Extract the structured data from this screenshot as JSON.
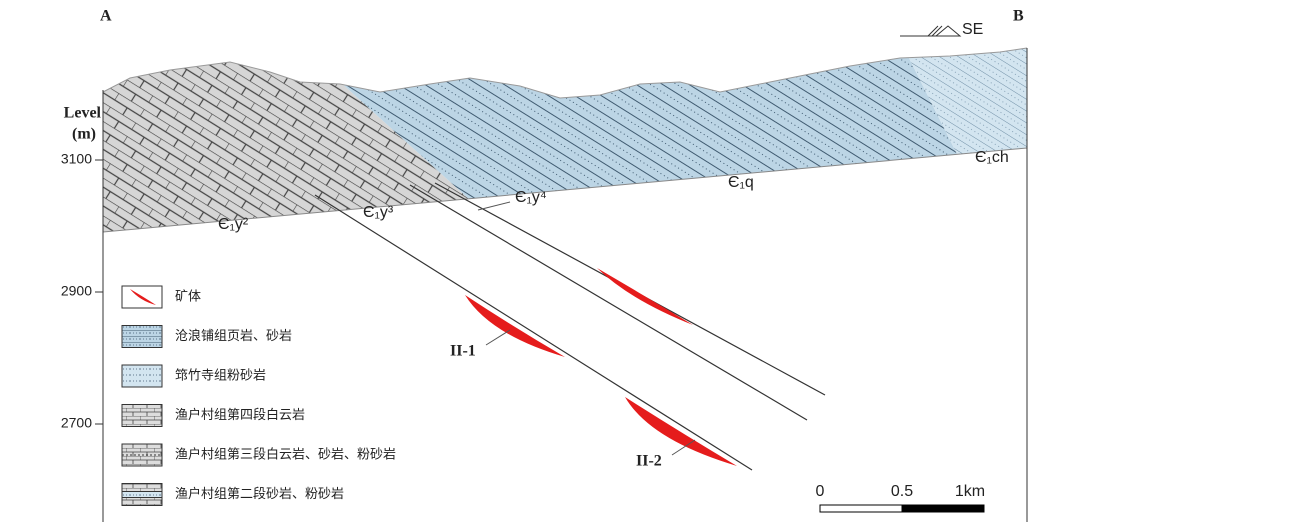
{
  "header": {
    "left_end": "A",
    "right_end": "B",
    "direction": "SE"
  },
  "axis": {
    "title": "Level",
    "unit": "(m)",
    "ticks": [
      3100,
      2900,
      2700
    ]
  },
  "formations": [
    "Є₁y²",
    "Є₁y³",
    "Є₁y⁴",
    "Є₁q",
    "Є₁ch"
  ],
  "ore_bodies": [
    "II-1",
    "II-2"
  ],
  "legend": [
    "矿体",
    "沧浪铺组页岩、砂岩",
    "筇竹寺组粉砂岩",
    "渔户村组第四段白云岩",
    "渔户村组第三段白云岩、砂岩、粉砂岩",
    "渔户村组第二段砂岩、粉砂岩"
  ],
  "scale_bar": {
    "labels": [
      "0",
      "0.5",
      "1km"
    ]
  }
}
